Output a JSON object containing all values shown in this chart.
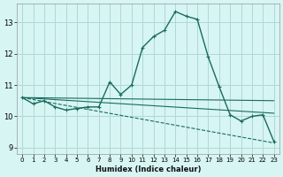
{
  "xlabel": "Humidex (Indice chaleur)",
  "background_color": "#d6f5f3",
  "grid_color": "#b0d8d5",
  "line_color": "#1a6b5e",
  "xlim": [
    -0.5,
    23.5
  ],
  "ylim": [
    8.8,
    13.6
  ],
  "yticks": [
    9,
    10,
    11,
    12,
    13
  ],
  "xticks": [
    0,
    1,
    2,
    3,
    4,
    5,
    6,
    7,
    8,
    9,
    10,
    11,
    12,
    13,
    14,
    15,
    16,
    17,
    18,
    19,
    20,
    21,
    22,
    23
  ],
  "curve1": {
    "x": [
      0,
      1,
      2,
      3,
      4,
      5,
      6,
      7,
      8,
      9,
      10,
      11,
      12,
      13,
      14,
      15,
      16,
      17,
      18,
      19,
      20,
      21,
      22,
      23
    ],
    "y": [
      10.6,
      10.4,
      10.5,
      10.3,
      10.2,
      10.25,
      10.3,
      10.3,
      11.1,
      10.7,
      11.0,
      12.2,
      12.55,
      12.75,
      13.35,
      13.2,
      13.1,
      11.9,
      10.95,
      10.05,
      9.85,
      10.0,
      10.05,
      9.2
    ]
  },
  "line_flat": {
    "x": [
      0,
      23
    ],
    "y": [
      10.6,
      10.5
    ]
  },
  "line_slight_down": {
    "x": [
      0,
      23
    ],
    "y": [
      10.6,
      10.1
    ]
  },
  "line_diagonal": {
    "x": [
      0,
      23
    ],
    "y": [
      10.6,
      9.15
    ]
  }
}
